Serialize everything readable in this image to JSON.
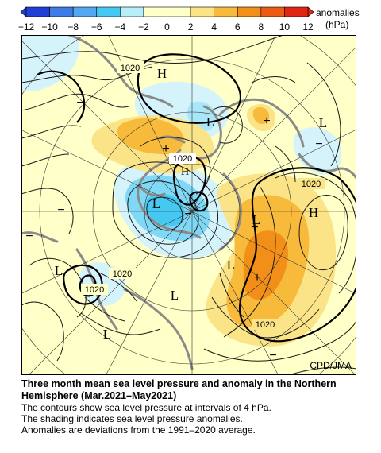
{
  "colorbar": {
    "unit_label": "anomalies",
    "unit": "(hPa)",
    "ticks": [
      "−12",
      "−10",
      "−8",
      "−6",
      "−4",
      "−2",
      "0",
      "2",
      "4",
      "6",
      "8",
      "10",
      "12"
    ],
    "colors": [
      "#1f3fd6",
      "#3d7be6",
      "#52a8f0",
      "#45c8f2",
      "#b8eefa",
      "#ffffc8",
      "#ffffc8",
      "#fbe487",
      "#f7ba3b",
      "#f28f18",
      "#ec5b12",
      "#e02612"
    ]
  },
  "map": {
    "credit": "CPD/JMA",
    "contour_labels": [
      "1020",
      "1020",
      "1020",
      "1020",
      "1020",
      "1020"
    ],
    "pressure_centers": [
      "H",
      "H",
      "H",
      "L",
      "L",
      "L",
      "L",
      "L",
      "L",
      "L",
      "L"
    ],
    "anomaly_signs": [
      "+",
      "+",
      "+",
      "+",
      "−",
      "−",
      "−",
      "−",
      "−",
      "−"
    ]
  },
  "caption": {
    "title_line1": "Three month mean sea level pressure and anomaly in the Northern",
    "title_line2": "Hemisphere (Mar.2021–May2021)",
    "line1": "The contours show sea level pressure at intervals of 4 hPa.",
    "line2": "The shading indicates sea level pressure anomalies.",
    "line3": "Anomalies are deviations from the 1991–2020 average."
  }
}
